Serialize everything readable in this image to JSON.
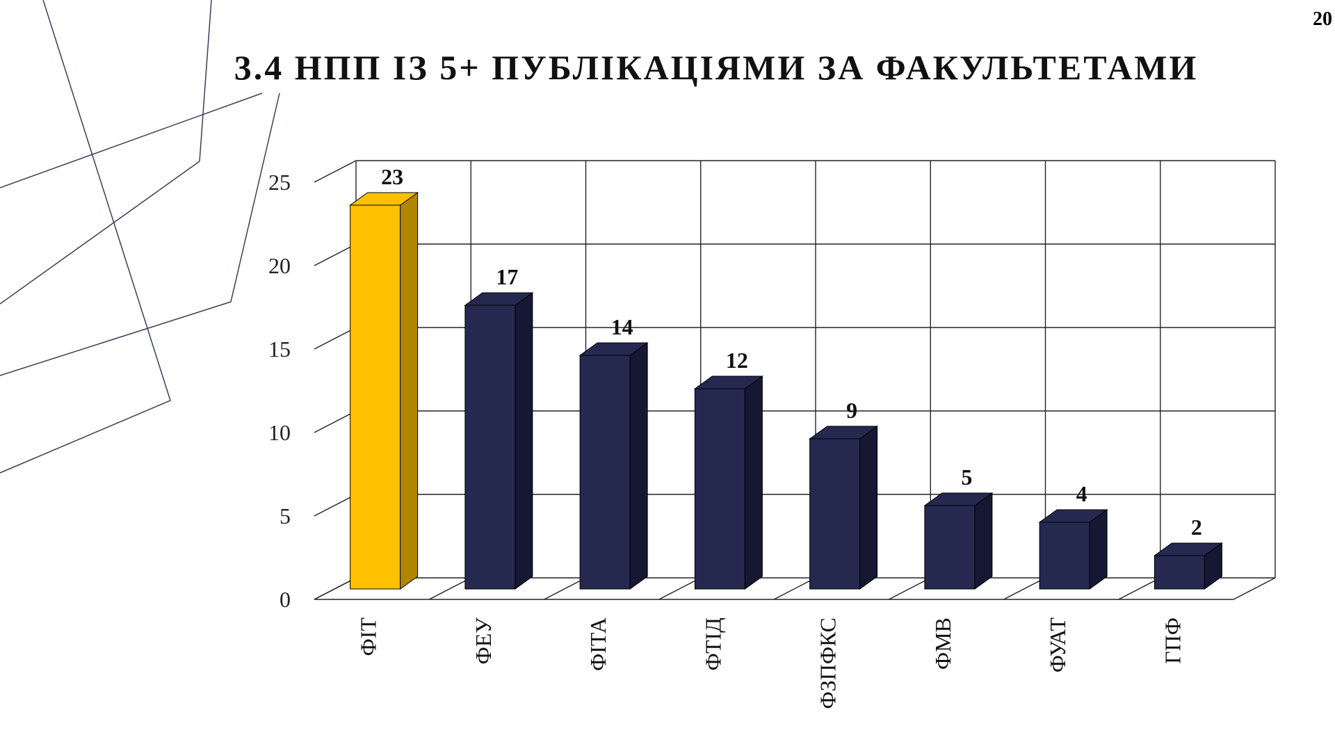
{
  "page_number": "20",
  "title": "3.4 НПП ІЗ 5+ ПУБЛІКАЦІЯМИ ЗА ФАКУЛЬТЕТАМИ",
  "colors": {
    "highlight": "#FFC000",
    "highlight_side": "#B28600",
    "bar": "#25284F",
    "bar_side": "#161833",
    "grid": "#222222",
    "decor_lines": "#3A3D5C"
  },
  "chart_data": {
    "type": "bar",
    "style": "3d-column",
    "categories": [
      "ФІТ",
      "ФЕУ",
      "ФІТА",
      "ФТІД",
      "ФЗПФКС",
      "ФМВ",
      "ФУАТ",
      "ГПФ"
    ],
    "values": [
      23,
      17,
      14,
      12,
      9,
      5,
      4,
      2
    ],
    "highlighted_category": "ФІТ",
    "data_labels": true,
    "title": "",
    "xlabel": "",
    "ylabel": "",
    "ylim": [
      0,
      25
    ],
    "yticks": [
      0,
      5,
      10,
      15,
      20,
      25
    ],
    "grid": true,
    "legend": "none"
  }
}
